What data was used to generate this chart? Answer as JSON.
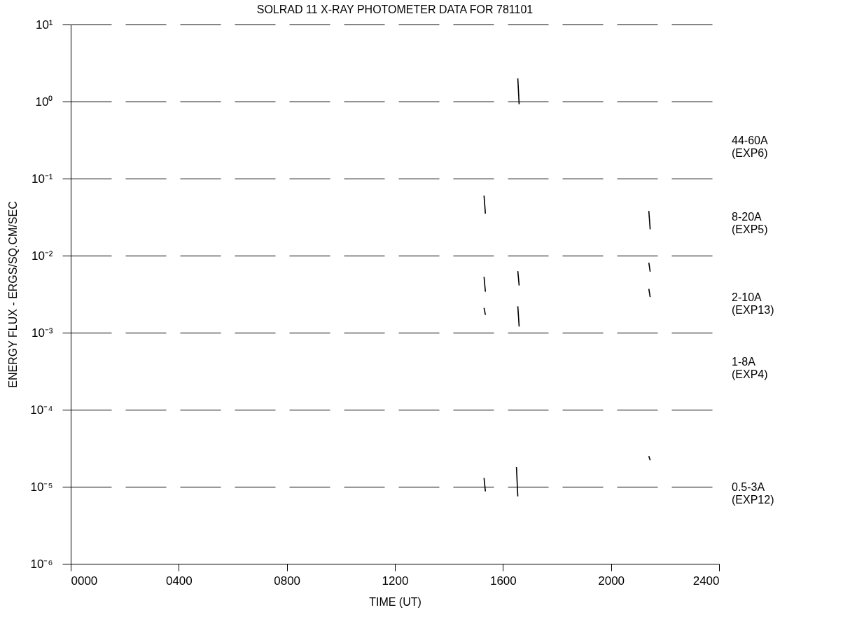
{
  "chart_data": {
    "type": "line",
    "title": "SOLRAD 11    X-RAY PHOTOMETER DATA    FOR 781101",
    "xlabel": "TIME (UT)",
    "ylabel": "ENERGY FLUX - ERGS/SQ.CM/SEC",
    "log": "y",
    "grid": "y",
    "line_style": "solid",
    "marker": "none",
    "legend": false,
    "xlim": [
      0,
      2400
    ],
    "ylim": [
      1e-06,
      10
    ],
    "xticks": [
      {
        "value": 0,
        "label": "0000"
      },
      {
        "value": 400,
        "label": "0400"
      },
      {
        "value": 800,
        "label": "0800"
      },
      1200,
      1600,
      2000,
      2400
    ],
    "yticks": [
      {
        "value": 1e-06,
        "label": "10⁻⁶"
      },
      {
        "value": 1e-05,
        "label": "10⁻⁵"
      },
      {
        "value": 0.0001,
        "label": "10⁻⁴"
      },
      {
        "value": 0.001,
        "label": "10⁻³"
      },
      {
        "value": 0.01,
        "label": "10⁻²"
      },
      {
        "value": 0.1,
        "label": "10⁻¹"
      },
      {
        "value": 1,
        "label": "10⁰"
      },
      {
        "value": 10,
        "label": "10¹"
      }
    ],
    "series": [
      {
        "color": "#000000",
        "x": [
          1655,
          1660
        ],
        "values": [
          2.0,
          0.92
        ]
      },
      {
        "color": "#000000",
        "x": [
          1530,
          1535
        ],
        "values": [
          0.06,
          0.035
        ]
      },
      {
        "color": "#000000",
        "x": [
          2140,
          2145
        ],
        "values": [
          0.038,
          0.022
        ]
      },
      {
        "color": "#000000",
        "x": [
          1530,
          1535
        ],
        "values": [
          0.0053,
          0.0034
        ]
      },
      {
        "color": "#000000",
        "x": [
          1655,
          1660
        ],
        "values": [
          0.0063,
          0.0041
        ]
      },
      {
        "color": "#000000",
        "x": [
          2140,
          2145
        ],
        "values": [
          0.0081,
          0.0062
        ]
      },
      {
        "color": "#000000",
        "x": [
          2140,
          2145
        ],
        "values": [
          0.0037,
          0.0029
        ]
      },
      {
        "color": "#000000",
        "x": [
          1530,
          1535
        ],
        "values": [
          0.0021,
          0.0017
        ]
      },
      {
        "color": "#000000",
        "x": [
          1655,
          1660
        ],
        "values": [
          0.0022,
          0.0012
        ]
      },
      {
        "color": "#000000",
        "x": [
          1530,
          1535
        ],
        "values": [
          1.3e-05,
          8.7e-06
        ]
      },
      {
        "color": "#000000",
        "x": [
          1650,
          1655
        ],
        "values": [
          1.8e-05,
          7.5e-06
        ]
      },
      {
        "color": "#000000",
        "x": [
          2140,
          2145
        ],
        "values": [
          2.5e-05,
          2.2e-05
        ]
      }
    ],
    "annotations": [
      "44-60A (EXP6)",
      "8-20A (EXP5)",
      "2-10A (EXP13)",
      "1-8A (EXP4)",
      "0.5-3A (EXP12)"
    ]
  }
}
